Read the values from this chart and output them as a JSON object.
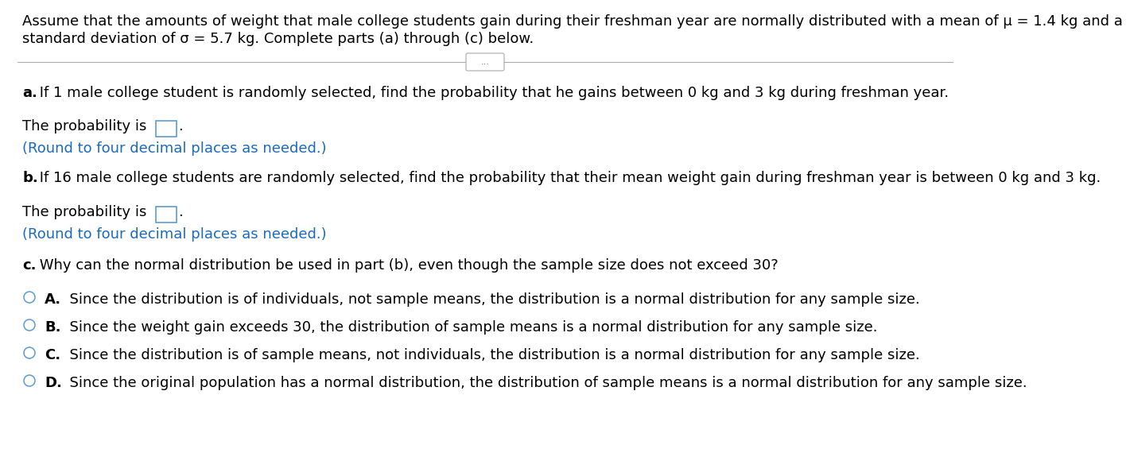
{
  "header_line1": "Assume that the amounts of weight that male college students gain during their freshman year are normally distributed with a mean of μ = 1.4 kg and a",
  "header_line2": "standard deviation of σ = 5.7 kg. Complete parts (a) through (c) below.",
  "separator_dots": "...",
  "part_a_bold": "a.",
  "part_a_rest": " If 1 male college student is randomly selected, find the probability that he gains between 0 kg and 3 kg during freshman year.",
  "part_a_prob": "The probability is",
  "part_a_round": "(Round to four decimal places as needed.)",
  "part_b_bold": "b.",
  "part_b_rest": " If 16 male college students are randomly selected, find the probability that their mean weight gain during freshman year is between 0 kg and 3 kg.",
  "part_b_prob": "The probability is",
  "part_b_round": "(Round to four decimal places as needed.)",
  "part_c_bold": "c.",
  "part_c_rest": " Why can the normal distribution be used in part (b), even though the sample size does not exceed 30?",
  "option_A_bold": "A.",
  "option_A_rest": "  Since the distribution is of individuals, not sample means, the distribution is a normal distribution for any sample size.",
  "option_B_bold": "B.",
  "option_B_rest": "  Since the weight gain exceeds 30, the distribution of sample means is a normal distribution for any sample size.",
  "option_C_bold": "C.",
  "option_C_rest": "  Since the distribution is of sample means, not individuals, the distribution is a normal distribution for any sample size.",
  "option_D_bold": "D.",
  "option_D_rest": "  Since the original population has a normal distribution, the distribution of sample means is a normal distribution for any sample size.",
  "bg_color": "#ffffff",
  "text_color": "#000000",
  "blue_color": "#1a6bbf",
  "circle_color": "#5b9bd5",
  "box_border_color": "#5b9bd5",
  "sep_line_color": "#aaaaaa",
  "fs": 13.0
}
